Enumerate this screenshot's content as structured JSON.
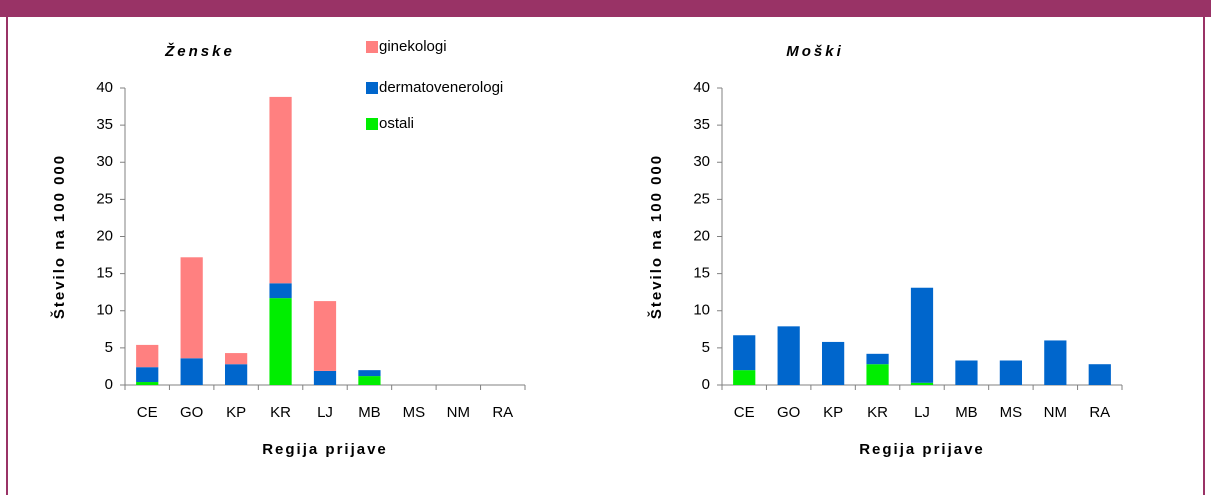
{
  "chart_data": [
    {
      "type": "bar",
      "stacked": true,
      "title": "Ženske",
      "xlabel": "Regija prijave",
      "ylabel": "Število na 100 000",
      "categories": [
        "CE",
        "GO",
        "KP",
        "KR",
        "LJ",
        "MB",
        "MS",
        "NM",
        "RA"
      ],
      "ylim": [
        0,
        40
      ],
      "yticks": [
        0,
        5,
        10,
        15,
        20,
        25,
        30,
        35,
        40
      ],
      "legend": true,
      "series": [
        {
          "name": "ostali",
          "color": "#00ee00",
          "values": [
            0.4,
            0,
            0,
            11.7,
            0,
            1.2,
            0,
            0,
            0
          ]
        },
        {
          "name": "dermatovenerologi",
          "color": "#0066cc",
          "values": [
            2.0,
            3.6,
            2.8,
            2.0,
            1.9,
            0.8,
            0,
            0,
            0
          ]
        },
        {
          "name": "ginekologi",
          "color": "#ff8080",
          "values": [
            3.0,
            13.6,
            1.5,
            25.1,
            9.4,
            0,
            0,
            0,
            0
          ]
        }
      ]
    },
    {
      "type": "bar",
      "stacked": true,
      "title": "Moški",
      "xlabel": "Regija prijave",
      "ylabel": "Število na 100 000",
      "categories": [
        "CE",
        "GO",
        "KP",
        "KR",
        "LJ",
        "MB",
        "MS",
        "NM",
        "RA"
      ],
      "ylim": [
        0,
        40
      ],
      "yticks": [
        0,
        5,
        10,
        15,
        20,
        25,
        30,
        35,
        40
      ],
      "legend": false,
      "series": [
        {
          "color": "#00ee00",
          "values": [
            2.0,
            0,
            0,
            2.8,
            0.3,
            0,
            0,
            0,
            0
          ]
        },
        {
          "color": "#0066cc",
          "values": [
            4.7,
            7.9,
            5.8,
            1.4,
            12.8,
            3.3,
            3.3,
            6.0,
            2.8
          ]
        }
      ]
    }
  ]
}
